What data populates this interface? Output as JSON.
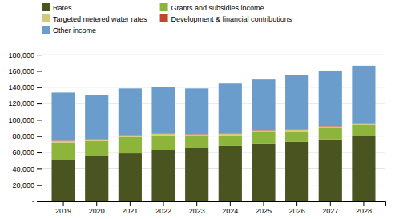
{
  "chart_data": {
    "type": "bar",
    "stacked": true,
    "categories": [
      "2019",
      "2020",
      "2021",
      "2022",
      "2023",
      "2024",
      "2025",
      "2026",
      "2027",
      "2028"
    ],
    "series": [
      {
        "name": "Rates",
        "color": "#4a5421",
        "values": [
          51000,
          56000,
          59000,
          63000,
          65000,
          68000,
          71000,
          73000,
          76000,
          80000
        ]
      },
      {
        "name": "Grants and subsidies income",
        "color": "#8db53b",
        "values": [
          21000,
          18000,
          20000,
          18000,
          15000,
          13000,
          14000,
          13000,
          14000,
          14000
        ]
      },
      {
        "name": "Targeted metered water rates",
        "color": "#d4c87a",
        "values": [
          2000,
          2000,
          2000,
          2000,
          2000,
          2000,
          2000,
          2000,
          2000,
          2000
        ]
      },
      {
        "name": "Development & financial contributions",
        "color": "#c0472b",
        "values": [
          500,
          500,
          500,
          500,
          500,
          500,
          500,
          500,
          500,
          500
        ]
      },
      {
        "name": "Other income",
        "color": "#6b9dcc",
        "values": [
          59000,
          54000,
          57000,
          57000,
          56000,
          61000,
          62000,
          67000,
          68000,
          70000
        ]
      }
    ],
    "ylim": [
      0,
      190000
    ],
    "yticks": [
      {
        "value": 0,
        "label": "-"
      },
      {
        "value": 20000,
        "label": "20,000"
      },
      {
        "value": 40000,
        "label": "40,000"
      },
      {
        "value": 60000,
        "label": "60,000"
      },
      {
        "value": 80000,
        "label": "80,000"
      },
      {
        "value": 100000,
        "label": "100,000"
      },
      {
        "value": 120000,
        "label": "120,000"
      },
      {
        "value": 140000,
        "label": "140,000"
      },
      {
        "value": 160000,
        "label": "160,000"
      },
      {
        "value": 180000,
        "label": "180,000"
      }
    ],
    "grid": true,
    "legend": "top"
  }
}
